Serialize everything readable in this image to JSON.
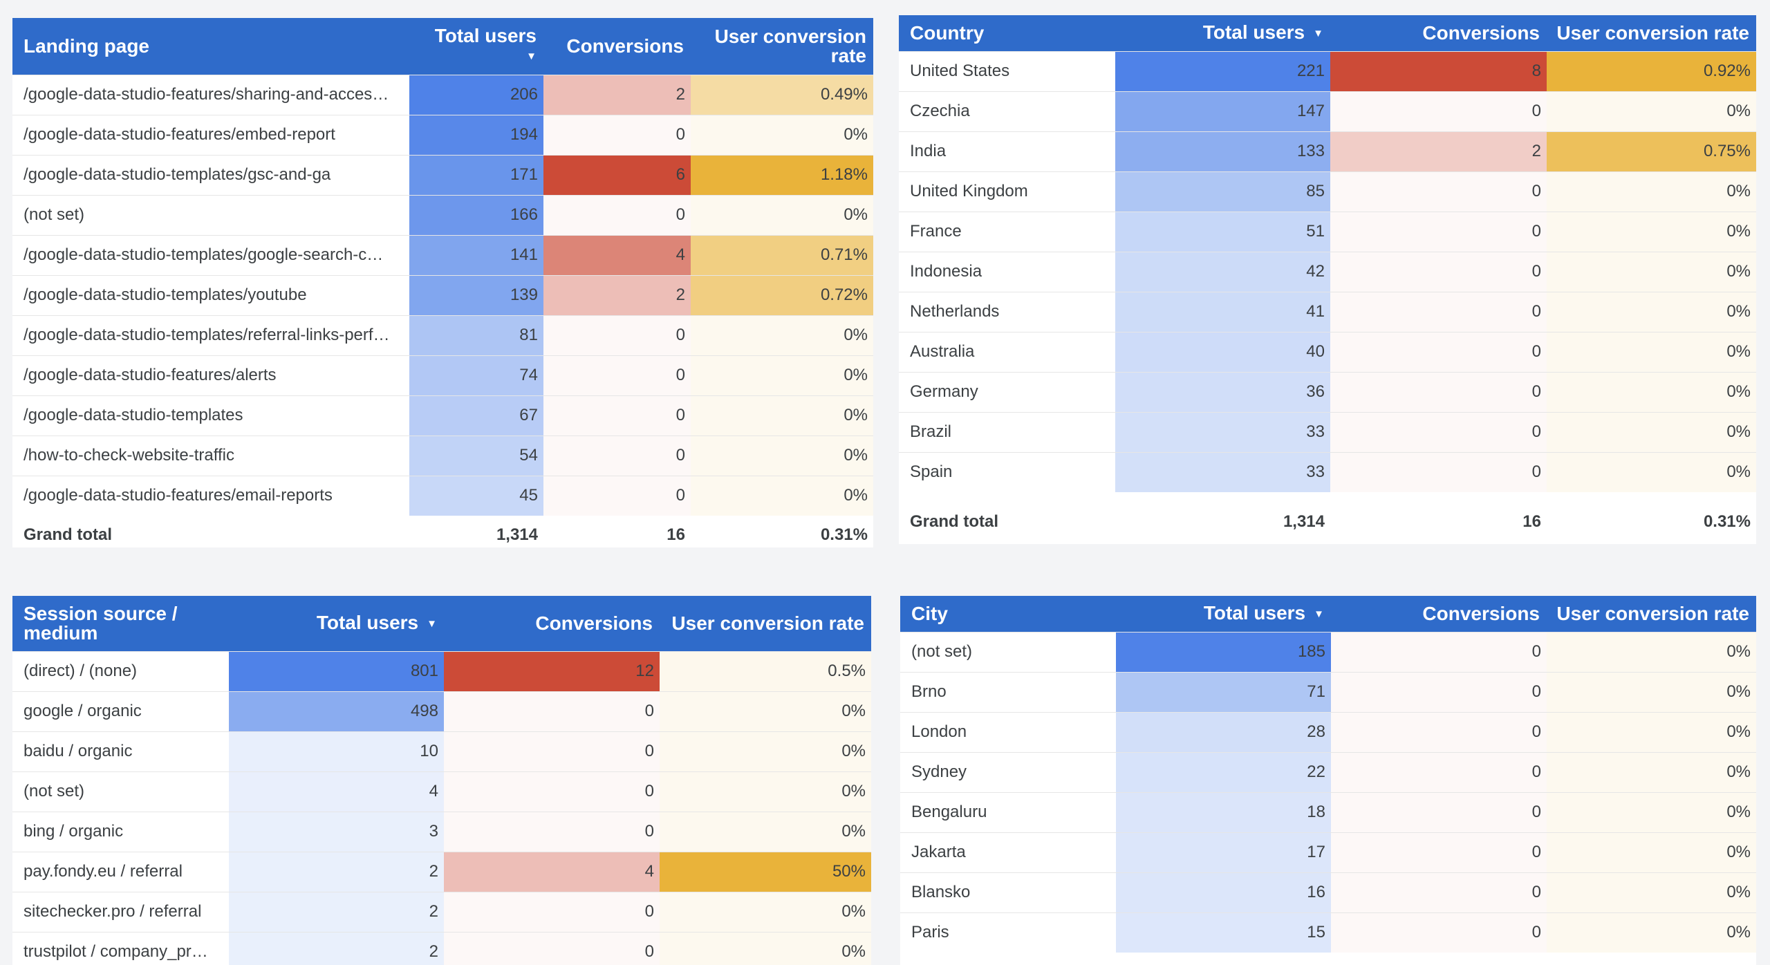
{
  "landing": {
    "headers": [
      "Landing page",
      "Total users",
      "Conversions",
      "User conversion rate"
    ],
    "colors": {
      "users": "#4f82e8",
      "conv": "#cc4b37",
      "rate": "#e9b33a"
    },
    "max": {
      "users": 206,
      "conv": 6,
      "rate": 1.18
    },
    "rows": [
      {
        "page": "/google-data-studio-features/sharing-and-acces…",
        "users": "206",
        "conv": "2",
        "rate": "0.49%"
      },
      {
        "page": "/google-data-studio-features/embed-report",
        "users": "194",
        "conv": "0",
        "rate": "0%"
      },
      {
        "page": "/google-data-studio-templates/gsc-and-ga",
        "users": "171",
        "conv": "6",
        "rate": "1.18%"
      },
      {
        "page": "(not set)",
        "users": "166",
        "conv": "0",
        "rate": "0%"
      },
      {
        "page": "/google-data-studio-templates/google-search-c…",
        "users": "141",
        "conv": "4",
        "rate": "0.71%"
      },
      {
        "page": "/google-data-studio-templates/youtube",
        "users": "139",
        "conv": "2",
        "rate": "0.72%"
      },
      {
        "page": "/google-data-studio-templates/referral-links-perf…",
        "users": "81",
        "conv": "0",
        "rate": "0%"
      },
      {
        "page": "/google-data-studio-features/alerts",
        "users": "74",
        "conv": "0",
        "rate": "0%"
      },
      {
        "page": "/google-data-studio-templates",
        "users": "67",
        "conv": "0",
        "rate": "0%"
      },
      {
        "page": "/how-to-check-website-traffic",
        "users": "54",
        "conv": "0",
        "rate": "0%"
      },
      {
        "page": "/google-data-studio-features/email-reports",
        "users": "45",
        "conv": "0",
        "rate": "0%"
      }
    ],
    "total": {
      "label": "Grand total",
      "users": "1,314",
      "conv": "16",
      "rate": "0.31%"
    }
  },
  "country": {
    "headers": [
      "Country",
      "Total users",
      "Conversions",
      "User conversion rate"
    ],
    "colors": {
      "users": "#4f82e8",
      "conv": "#cc4b37",
      "rate": "#e9b33a"
    },
    "max": {
      "users": 221,
      "conv": 8,
      "rate": 0.92
    },
    "rows": [
      {
        "name": "United States",
        "users": "221",
        "conv": "8",
        "rate": "0.92%"
      },
      {
        "name": "Czechia",
        "users": "147",
        "conv": "0",
        "rate": "0%"
      },
      {
        "name": "India",
        "users": "133",
        "conv": "2",
        "rate": "0.75%"
      },
      {
        "name": "United Kingdom",
        "users": "85",
        "conv": "0",
        "rate": "0%"
      },
      {
        "name": "France",
        "users": "51",
        "conv": "0",
        "rate": "0%"
      },
      {
        "name": "Indonesia",
        "users": "42",
        "conv": "0",
        "rate": "0%"
      },
      {
        "name": "Netherlands",
        "users": "41",
        "conv": "0",
        "rate": "0%"
      },
      {
        "name": "Australia",
        "users": "40",
        "conv": "0",
        "rate": "0%"
      },
      {
        "name": "Germany",
        "users": "36",
        "conv": "0",
        "rate": "0%"
      },
      {
        "name": "Brazil",
        "users": "33",
        "conv": "0",
        "rate": "0%"
      },
      {
        "name": "Spain",
        "users": "33",
        "conv": "0",
        "rate": "0%"
      }
    ],
    "total": {
      "label": "Grand total",
      "users": "1,314",
      "conv": "16",
      "rate": "0.31%"
    }
  },
  "source": {
    "headers": [
      "Session source / medium",
      "Total users",
      "Conversions",
      "User conversion rate"
    ],
    "colors": {
      "users": "#4f82e8",
      "conv": "#cc4b37",
      "rate": "#e9b33a"
    },
    "max": {
      "users": 801,
      "conv": 12,
      "rate": 50
    },
    "rows": [
      {
        "name": "(direct) / (none)",
        "users": "801",
        "conv": "12",
        "rate": "0.5%"
      },
      {
        "name": "google / organic",
        "users": "498",
        "conv": "0",
        "rate": "0%"
      },
      {
        "name": "baidu / organic",
        "users": "10",
        "conv": "0",
        "rate": "0%"
      },
      {
        "name": "(not set)",
        "users": "4",
        "conv": "0",
        "rate": "0%"
      },
      {
        "name": "bing / organic",
        "users": "3",
        "conv": "0",
        "rate": "0%"
      },
      {
        "name": "pay.fondy.eu / referral",
        "users": "2",
        "conv": "4",
        "rate": "50%"
      },
      {
        "name": "sitechecker.pro / referral",
        "users": "2",
        "conv": "0",
        "rate": "0%"
      },
      {
        "name": "trustpilot / company_pr…",
        "users": "2",
        "conv": "0",
        "rate": "0%"
      }
    ]
  },
  "city": {
    "headers": [
      "City",
      "Total users",
      "Conversions",
      "User conversion rate"
    ],
    "colors": {
      "users": "#4f82e8",
      "conv": "#cc4b37",
      "rate": "#e9b33a"
    },
    "max": {
      "users": 185,
      "conv": 1,
      "rate": 1
    },
    "rows": [
      {
        "name": "(not set)",
        "users": "185",
        "conv": "0",
        "rate": "0%"
      },
      {
        "name": "Brno",
        "users": "71",
        "conv": "0",
        "rate": "0%"
      },
      {
        "name": "London",
        "users": "28",
        "conv": "0",
        "rate": "0%"
      },
      {
        "name": "Sydney",
        "users": "22",
        "conv": "0",
        "rate": "0%"
      },
      {
        "name": "Bengaluru",
        "users": "18",
        "conv": "0",
        "rate": "0%"
      },
      {
        "name": "Jakarta",
        "users": "17",
        "conv": "0",
        "rate": "0%"
      },
      {
        "name": "Blansko",
        "users": "16",
        "conv": "0",
        "rate": "0%"
      },
      {
        "name": "Paris",
        "users": "15",
        "conv": "0",
        "rate": "0%"
      }
    ]
  }
}
